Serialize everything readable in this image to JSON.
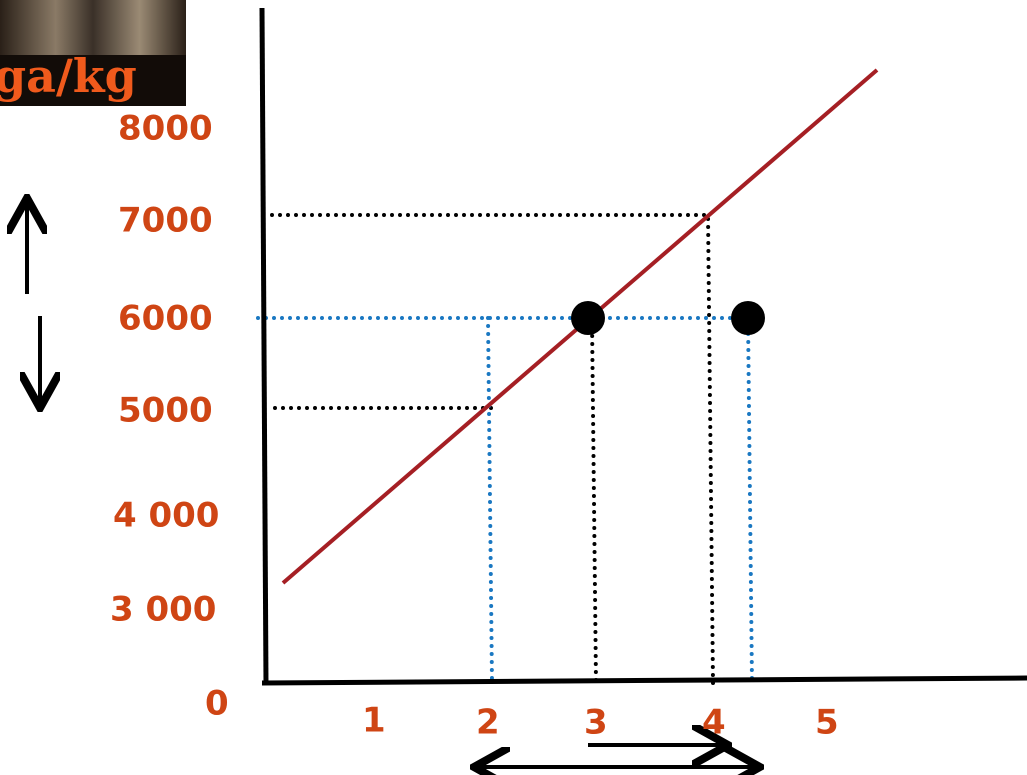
{
  "header": {
    "title": "ga/kg"
  },
  "y_labels": [
    "8000",
    "7000",
    "6000",
    "5000",
    "4 000",
    "3 000",
    "0"
  ],
  "x_labels": [
    "1",
    "2",
    "3",
    "4",
    "5"
  ]
}
